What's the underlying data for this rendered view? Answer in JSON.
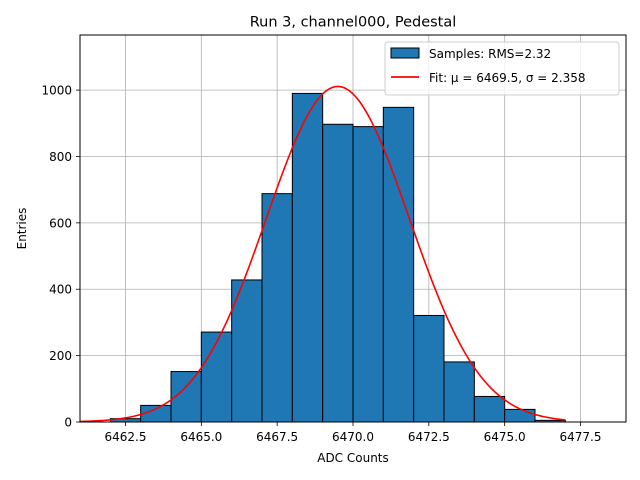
{
  "chart_data": {
    "type": "bar",
    "title": "Run 3, channel000, Pedestal",
    "xlabel": "ADC Counts",
    "ylabel": "Entries",
    "xlim": [
      6461.0,
      6479.0
    ],
    "ylim": [
      0,
      1166
    ],
    "x_ticks": [
      6462.5,
      6465.0,
      6467.5,
      6470.0,
      6472.5,
      6475.0,
      6477.5
    ],
    "x_tick_labels": [
      "6462.5",
      "6465.0",
      "6467.5",
      "6470.0",
      "6472.5",
      "6475.0",
      "6477.5"
    ],
    "y_ticks": [
      0,
      200,
      400,
      600,
      800,
      1000
    ],
    "y_tick_labels": [
      "0",
      "200",
      "400",
      "600",
      "800",
      "1000"
    ],
    "grid": true,
    "legend_position": "top-right",
    "histogram": {
      "name": "Samples: RMS=2.32",
      "color": "#1f77b4",
      "bin_edges": [
        6462,
        6463,
        6464,
        6465,
        6466,
        6467,
        6468,
        6469,
        6470,
        6471,
        6472,
        6473,
        6474,
        6475,
        6476,
        6477
      ],
      "counts": [
        10,
        50,
        152,
        271,
        428,
        688,
        990,
        897,
        890,
        948,
        321,
        181,
        77,
        38,
        5
      ]
    },
    "fit": {
      "name": "Fit: μ = 6469.5, σ = 2.358",
      "color": "#ff0000",
      "mu": 6469.5,
      "sigma": 2.358,
      "peak": 1011,
      "x_range": [
        6461.0,
        6477.0
      ]
    }
  }
}
